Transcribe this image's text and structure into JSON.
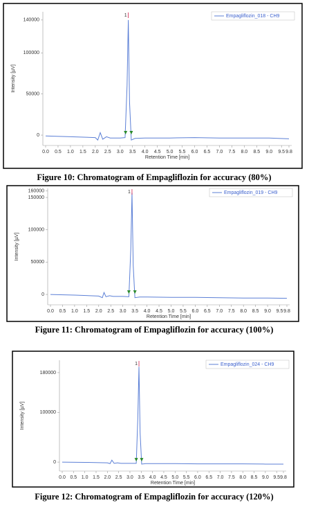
{
  "chart_data": [
    {
      "type": "line",
      "caption": "Figure 10: Chromatogram of Empagliflozin for accuracy (80%)",
      "xlabel": "Retention Time [min]",
      "ylabel": "Intensity [µV]",
      "peak_label": "1",
      "peak_x": 3.33,
      "xlim": [
        0,
        9.8
      ],
      "ylim": [
        -12600,
        150000
      ],
      "xticks": [
        {
          "value": 0,
          "label": "0.0"
        },
        {
          "value": 0.5,
          "label": "0.5"
        },
        {
          "value": 1,
          "label": "1.0"
        },
        {
          "value": 1.5,
          "label": "1.5"
        },
        {
          "value": 2,
          "label": "2.0"
        },
        {
          "value": 2.5,
          "label": "2.5"
        },
        {
          "value": 3,
          "label": "3.0"
        },
        {
          "value": 3.5,
          "label": "3.5"
        },
        {
          "value": 4,
          "label": "4.0"
        },
        {
          "value": 4.5,
          "label": "4.5"
        },
        {
          "value": 5,
          "label": "5.0"
        },
        {
          "value": 5.5,
          "label": "5.5"
        },
        {
          "value": 6,
          "label": "6.0"
        },
        {
          "value": 6.5,
          "label": "6.5"
        },
        {
          "value": 7,
          "label": "7.0"
        },
        {
          "value": 7.5,
          "label": "7.5"
        },
        {
          "value": 8,
          "label": "8.0"
        },
        {
          "value": 8.5,
          "label": "8.5"
        },
        {
          "value": 9,
          "label": "9.0"
        },
        {
          "value": 9.5,
          "label": "9.5"
        },
        {
          "value": 9.8,
          "label": "9.8"
        }
      ],
      "yticks": [
        0,
        50000,
        100000,
        140000
      ],
      "markers": [
        3.22,
        3.45
      ],
      "series": [
        {
          "name": "Empagliflozin_018 - CH9",
          "color": "#5b7fd6",
          "x": [
            0,
            1,
            2,
            2.1,
            2.2,
            2.3,
            2.45,
            2.6,
            3.0,
            3.2,
            3.28,
            3.33,
            3.38,
            3.45,
            3.6,
            4,
            5,
            6,
            7,
            8,
            9,
            9.8
          ],
          "values": [
            -1000,
            -2000,
            -3000,
            -6000,
            3000,
            -5000,
            -2000,
            -3500,
            -3500,
            -3000,
            60000,
            140000,
            40000,
            -6000,
            -4000,
            -3500,
            -3500,
            -3000,
            -3500,
            -3500,
            -3500,
            -4500
          ]
        }
      ]
    },
    {
      "type": "line",
      "caption": "Figure 11: Chromatogram of Empagliflozin for accuracy (100%)",
      "xlabel": "Retention Time [min]",
      "ylabel": "Intensity [µV]",
      "peak_label": "1",
      "peak_x": 3.38,
      "xlim": [
        0,
        9.8
      ],
      "ylim": [
        -16000,
        164000
      ],
      "xticks": [
        {
          "value": 0,
          "label": "0.0"
        },
        {
          "value": 0.5,
          "label": "0.5"
        },
        {
          "value": 1,
          "label": "1.0"
        },
        {
          "value": 1.5,
          "label": "1.5"
        },
        {
          "value": 2,
          "label": "2.0"
        },
        {
          "value": 2.5,
          "label": "2.5"
        },
        {
          "value": 3,
          "label": "3.0"
        },
        {
          "value": 3.5,
          "label": "3.5"
        },
        {
          "value": 4,
          "label": "4.0"
        },
        {
          "value": 4.5,
          "label": "4.5"
        },
        {
          "value": 5,
          "label": "5.0"
        },
        {
          "value": 5.5,
          "label": "5.5"
        },
        {
          "value": 6,
          "label": "6.0"
        },
        {
          "value": 6.5,
          "label": "6.5"
        },
        {
          "value": 7,
          "label": "7.0"
        },
        {
          "value": 7.5,
          "label": "7.5"
        },
        {
          "value": 8,
          "label": "8.0"
        },
        {
          "value": 8.5,
          "label": "8.5"
        },
        {
          "value": 9,
          "label": "9.0"
        },
        {
          "value": 9.5,
          "label": "9.5"
        },
        {
          "value": 9.8,
          "label": "9.8"
        }
      ],
      "yticks": [
        0,
        50000,
        100000,
        150000,
        160000
      ],
      "markers": [
        3.25,
        3.5
      ],
      "series": [
        {
          "name": "Empagliflozin_019 - CH9",
          "color": "#5b7fd6",
          "x": [
            0,
            1,
            2,
            2.15,
            2.22,
            2.3,
            2.45,
            2.6,
            3.0,
            3.25,
            3.33,
            3.38,
            3.43,
            3.5,
            3.7,
            4,
            5,
            6,
            7,
            8,
            9,
            9.8
          ],
          "values": [
            0,
            -1000,
            -2500,
            -5000,
            3000,
            -3500,
            -2000,
            -3000,
            -3000,
            -3500,
            70000,
            157000,
            45000,
            -5000,
            -4000,
            -4000,
            -4500,
            -4500,
            -5000,
            -5500,
            -5500,
            -6000
          ]
        }
      ]
    },
    {
      "type": "line",
      "caption": "Figure 12: Chromatogram of Empagliflozin for accuracy (120%)",
      "xlabel": "Retention Time [min]",
      "ylabel": "Intensity [µV]",
      "peak_label": "1",
      "peak_x": 3.4,
      "xlim": [
        0,
        9.8
      ],
      "ylim": [
        -18000,
        205000
      ],
      "xticks": [
        {
          "value": 0,
          "label": "0.0"
        },
        {
          "value": 0.5,
          "label": "0.5"
        },
        {
          "value": 1,
          "label": "1.0"
        },
        {
          "value": 1.5,
          "label": "1.5"
        },
        {
          "value": 2,
          "label": "2.0"
        },
        {
          "value": 2.5,
          "label": "2.5"
        },
        {
          "value": 3,
          "label": "3.0"
        },
        {
          "value": 3.5,
          "label": "3.5"
        },
        {
          "value": 4,
          "label": "4.0"
        },
        {
          "value": 4.5,
          "label": "4.5"
        },
        {
          "value": 5,
          "label": "5.0"
        },
        {
          "value": 5.5,
          "label": "5.5"
        },
        {
          "value": 6,
          "label": "6.0"
        },
        {
          "value": 6.5,
          "label": "6.5"
        },
        {
          "value": 7,
          "label": "7.0"
        },
        {
          "value": 7.5,
          "label": "7.5"
        },
        {
          "value": 8,
          "label": "8.0"
        },
        {
          "value": 8.5,
          "label": "8.5"
        },
        {
          "value": 9,
          "label": "9.0"
        },
        {
          "value": 9.5,
          "label": "9.5"
        },
        {
          "value": 9.8,
          "label": "9.8"
        }
      ],
      "yticks": [
        0,
        100000,
        180000
      ],
      "markers": [
        3.28,
        3.52
      ],
      "series": [
        {
          "name": "Empagliflozin_024 - CH9",
          "color": "#5b7fd6",
          "x": [
            0,
            1,
            2,
            2.12,
            2.2,
            2.3,
            2.45,
            2.6,
            3.0,
            3.28,
            3.35,
            3.4,
            3.45,
            3.52,
            3.7,
            4,
            5,
            6,
            7,
            8,
            9,
            9.8
          ],
          "values": [
            0,
            -500,
            -1500,
            -3000,
            4000,
            -2500,
            -1500,
            -2500,
            -2500,
            -2500,
            90000,
            192000,
            60000,
            -4000,
            -3000,
            -3000,
            -3000,
            -3500,
            -3500,
            -3500,
            -4000,
            -4000
          ]
        }
      ]
    }
  ]
}
